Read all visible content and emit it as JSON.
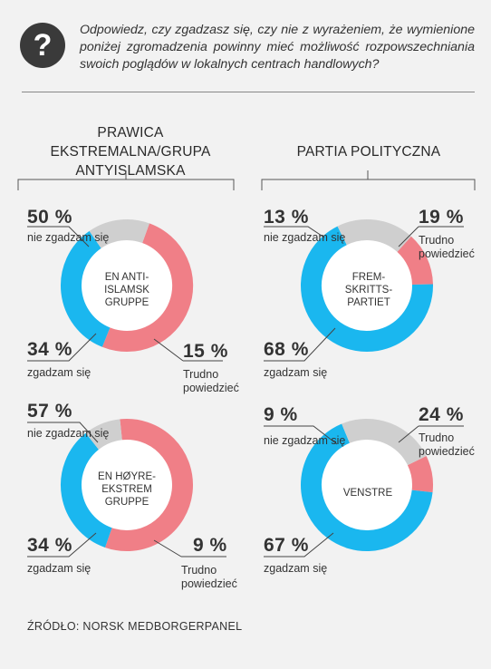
{
  "question": {
    "icon": "question-mark-icon",
    "text": "Odpowiedz, czy zgadzasz się, czy nie z wyrażeniem, że wymienione poniżej zgromadzenia powinny mieć możliwość rozpowszechniania swoich poglądów w lokalnych centrach handlowych?"
  },
  "groups": {
    "left_title": "PRAWICA EKSTREMALNA/GRUPA ANTYISLAMSKA",
    "right_title": "PARTIA POLITYCZNA"
  },
  "colors": {
    "nie_zgadzam": "#f07f87",
    "zgadzam": "#1ab7ef",
    "trudno": "#cfcfcf"
  },
  "chart_data": [
    {
      "type": "pie",
      "variant": "donut",
      "center_label": "EN ANTI-ISLAMSK GRUPPE",
      "labels": {
        "a": "50 %",
        "b": "34 %",
        "c": "15 %"
      },
      "categories": [
        "nie zgadzam się",
        "zgadzam się",
        "Trudno powiedzieć"
      ],
      "values": [
        50,
        34,
        15
      ]
    },
    {
      "type": "pie",
      "variant": "donut",
      "center_label": "FREM-SKRITTS-PARTIET",
      "labels": {
        "a": "13 %",
        "b": "68 %",
        "c": "19 %"
      },
      "categories": [
        "nie zgadzam się",
        "zgadzam się",
        "Trudno powiedzieć"
      ],
      "values": [
        13,
        68,
        19
      ]
    },
    {
      "type": "pie",
      "variant": "donut",
      "center_label": "EN HØYRE-EKSTREM GRUPPE",
      "labels": {
        "a": "57 %",
        "b": "34 %",
        "c": "9 %"
      },
      "categories": [
        "nie zgadzam się",
        "zgadzam się",
        "Trudno powiedzieć"
      ],
      "values": [
        57,
        34,
        9
      ]
    },
    {
      "type": "pie",
      "variant": "donut",
      "center_label": "VENSTRE",
      "labels": {
        "a": "9 %",
        "b": "67 %",
        "c": "24 %"
      },
      "categories": [
        "nie zgadzam się",
        "zgadzam się",
        "Trudno powiedzieć"
      ],
      "values": [
        9,
        67,
        24
      ]
    }
  ],
  "text_labels": {
    "nie_zgadzam": "nie zgadzam się",
    "zgadzam": "zgadzam się",
    "trudno_1": "Trudno",
    "trudno_2": "powiedzieć"
  },
  "source": "ŹRÓDŁO: NORSK MEDBORGERPANEL"
}
